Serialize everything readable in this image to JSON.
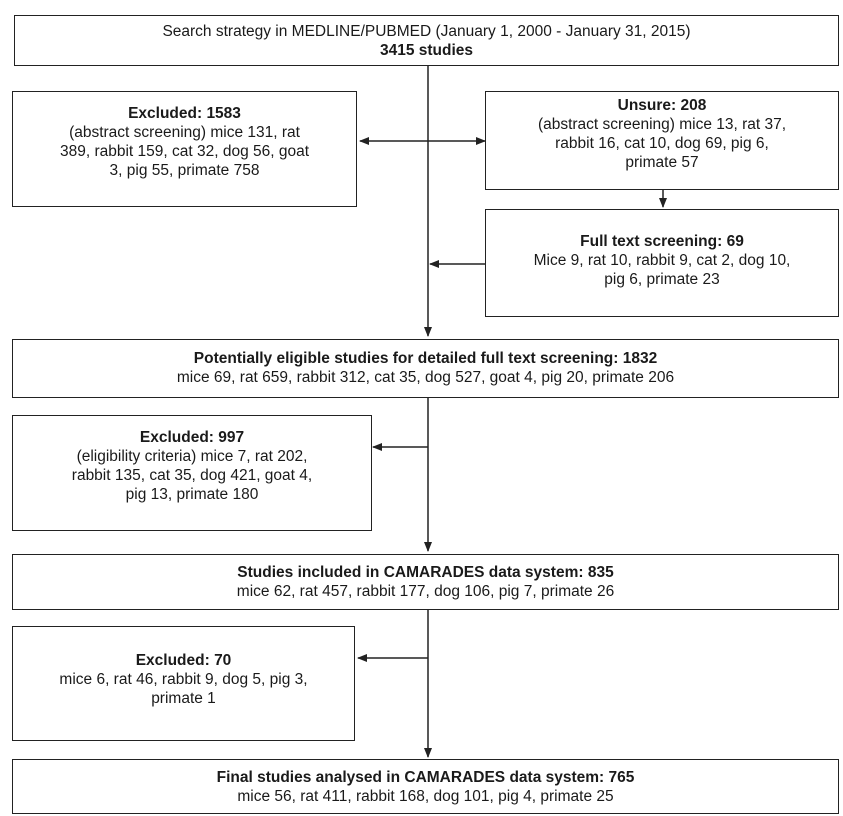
{
  "boxes": {
    "search": {
      "line1": "Search strategy in MEDLINE/PUBMED (January 1, 2000 - January 31, 2015)",
      "title": "3415 studies"
    },
    "excluded1": {
      "title": "Excluded: 1583",
      "line1": "(abstract screening) mice 131, rat",
      "line2": "389, rabbit 159, cat 32, dog 56, goat",
      "line3": "3, pig 55, primate 758"
    },
    "unsure": {
      "title": "Unsure: 208",
      "line1": "(abstract screening) mice 13, rat 37,",
      "line2": "rabbit 16, cat 10, dog 69, pig 6,",
      "line3": "primate 57"
    },
    "fulltext": {
      "title": "Full text screening: 69",
      "line1": "Mice 9, rat 10, rabbit 9, cat 2, dog 10,",
      "line2": "pig 6, primate 23"
    },
    "eligible": {
      "title": "Potentially eligible studies for detailed full text screening: 1832",
      "line1": "mice 69, rat 659, rabbit 312, cat 35, dog 527, goat 4, pig 20, primate 206"
    },
    "excluded2": {
      "title": "Excluded: 997",
      "line1": "(eligibility criteria) mice 7, rat 202,",
      "line2": "rabbit 135, cat 35, dog 421, goat 4,",
      "line3": "pig 13, primate 180"
    },
    "included": {
      "title": "Studies included in CAMARADES data system: 835",
      "line1": "mice 62, rat 457, rabbit 177, dog 106, pig 7, primate 26"
    },
    "excluded3": {
      "title": "Excluded: 70",
      "line1": "mice 6, rat 46, rabbit 9, dog 5, pig 3,",
      "line2": "primate 1"
    },
    "final": {
      "title": "Final studies analysed in CAMARADES data system: 765",
      "line1": "mice 56, rat 411, rabbit 168, dog 101, pig 4, primate 25"
    }
  }
}
